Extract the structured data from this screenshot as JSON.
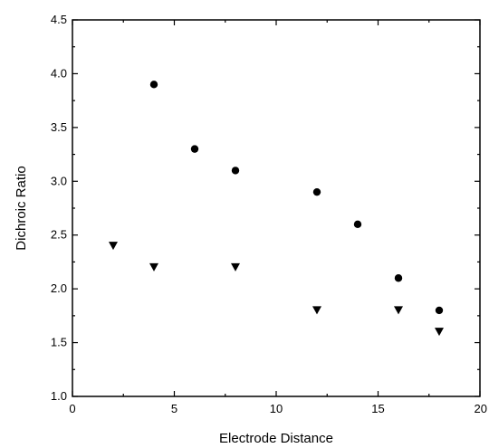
{
  "chart_data": {
    "type": "scatter",
    "title": "",
    "xlabel": "Electrode Distance",
    "ylabel": "Dichroic Ratio",
    "xlim": [
      0,
      20
    ],
    "ylim": [
      1.0,
      4.5
    ],
    "xticks": [
      0,
      5,
      10,
      15,
      20
    ],
    "xtick_labels": [
      "0",
      "5",
      "10",
      "15",
      "20"
    ],
    "yticks": [
      1.0,
      1.5,
      2.0,
      2.5,
      3.0,
      3.5,
      4.0,
      4.5
    ],
    "ytick_labels": [
      "1.0",
      "1.5",
      "2.0",
      "2.5",
      "3.0",
      "3.5",
      "4.0",
      "4.5"
    ],
    "grid": false,
    "legend": "none",
    "series": [
      {
        "marker": "circle",
        "color": "#000000",
        "points": [
          {
            "x": 4,
            "y": 3.9
          },
          {
            "x": 6,
            "y": 3.3
          },
          {
            "x": 8,
            "y": 3.1
          },
          {
            "x": 12,
            "y": 2.9
          },
          {
            "x": 14,
            "y": 2.6
          },
          {
            "x": 16,
            "y": 2.1
          },
          {
            "x": 18,
            "y": 1.8
          }
        ]
      },
      {
        "marker": "triangle-down",
        "color": "#000000",
        "points": [
          {
            "x": 2,
            "y": 2.4
          },
          {
            "x": 4,
            "y": 2.2
          },
          {
            "x": 8,
            "y": 2.2
          },
          {
            "x": 12,
            "y": 1.8
          },
          {
            "x": 16,
            "y": 1.8
          },
          {
            "x": 18,
            "y": 1.6
          }
        ]
      }
    ]
  }
}
